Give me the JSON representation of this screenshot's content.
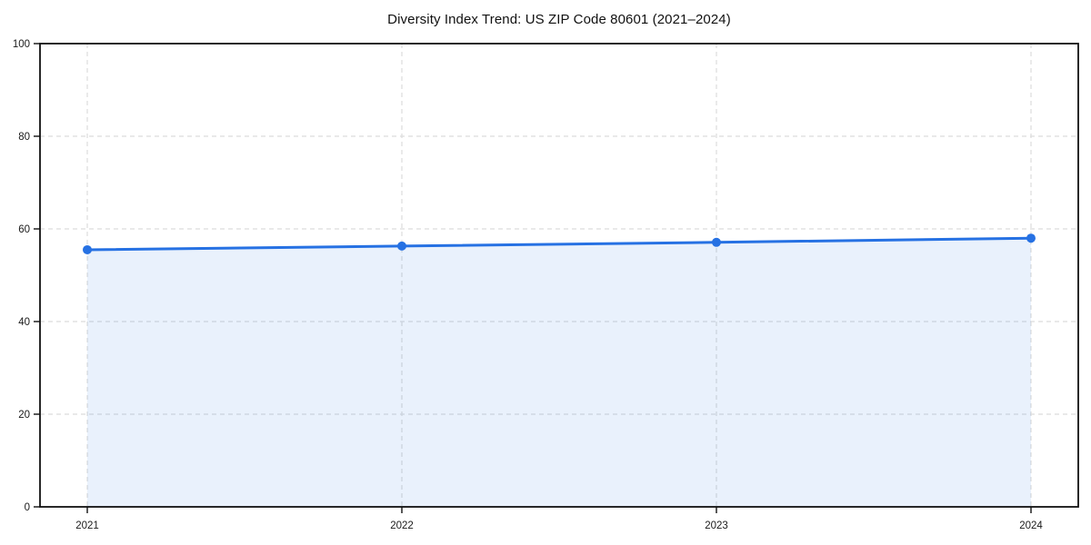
{
  "chart_data": {
    "type": "area",
    "title": "Diversity Index Trend: US ZIP Code 80601 (2021–2024)",
    "xlabel": "",
    "ylabel": "",
    "categories": [
      "2021",
      "2022",
      "2023",
      "2024"
    ],
    "series": [
      {
        "name": "Diversity Index",
        "values": [
          55.5,
          56.3,
          57.1,
          58.0
        ]
      }
    ],
    "ylim": [
      0,
      100
    ],
    "yticks": [
      0,
      20,
      40,
      60,
      80,
      100
    ],
    "grid": true,
    "grid_style": "dashed",
    "legend_position": "none",
    "colors": {
      "line": "#2671e3",
      "marker": "#2671e3",
      "fill": "rgba(38,113,227,0.10)",
      "grid": "#dcdcdc",
      "spine": "#111111",
      "text": "#1a1a1a",
      "background": "#ffffff"
    }
  }
}
